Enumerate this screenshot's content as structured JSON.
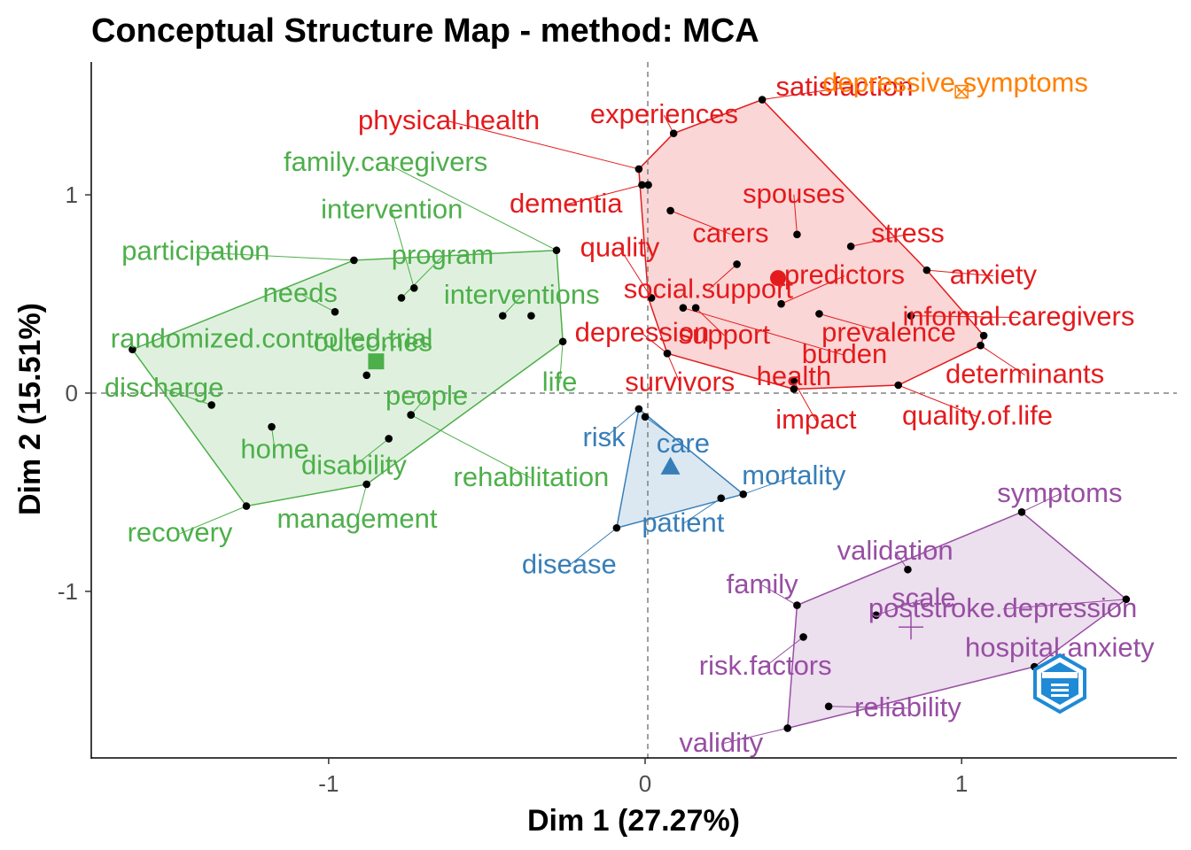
{
  "chart_data": {
    "type": "scatter",
    "title": "Conceptual Structure Map - method: MCA",
    "xlabel": "Dim 1 (27.27%)",
    "ylabel": "Dim 2 (15.51%)",
    "xlim": [
      -1.75,
      1.68
    ],
    "ylim": [
      -1.84,
      1.67
    ],
    "x_ticks": [
      -1,
      0,
      1
    ],
    "x_tick_labels": [
      "-1",
      "0",
      "1"
    ],
    "y_ticks": [
      -1,
      0,
      1
    ],
    "y_tick_labels": [
      "-1",
      "0",
      "1"
    ],
    "reference_lines": {
      "x": 0,
      "y": 0,
      "style": "dashed"
    },
    "grid": false,
    "clusters": [
      {
        "color": "#4daf4a",
        "centroid": {
          "x": -0.85,
          "y": 0.16,
          "marker": "square"
        },
        "hull": [
          [
            -1.62,
            0.22
          ],
          [
            -0.92,
            0.67
          ],
          [
            -0.28,
            0.72
          ],
          [
            -0.26,
            0.26
          ],
          [
            -0.88,
            -0.46
          ],
          [
            -1.26,
            -0.57
          ]
        ],
        "points": [
          {
            "label": "family.caregivers",
            "x": -0.28,
            "y": 0.72,
            "lx": -0.82,
            "ly": 1.17,
            "connector": true
          },
          {
            "label": "intervention",
            "x": -0.73,
            "y": 0.53,
            "lx": -0.8,
            "ly": 0.93,
            "connector": true
          },
          {
            "label": "participation",
            "x": -0.92,
            "y": 0.67,
            "lx": -1.42,
            "ly": 0.72,
            "connector": true
          },
          {
            "label": "program",
            "x": -0.77,
            "y": 0.48,
            "lx": -0.64,
            "ly": 0.7,
            "connector": true
          },
          {
            "label": "needs",
            "x": -0.98,
            "y": 0.41,
            "lx": -1.09,
            "ly": 0.51,
            "connector": true
          },
          {
            "label": "interventions",
            "x": -0.45,
            "y": 0.39,
            "lx": -0.39,
            "ly": 0.5,
            "connector": true
          },
          {
            "label": "randomized.controlled.trial",
            "x": -0.36,
            "y": 0.39,
            "lx": -1.18,
            "ly": 0.28,
            "connector": false
          },
          {
            "label": "outcomes",
            "x": -0.88,
            "y": 0.09,
            "lx": -0.86,
            "ly": 0.26,
            "connector": false
          },
          {
            "label": "discharge",
            "x": -1.37,
            "y": -0.06,
            "lx": -1.52,
            "ly": 0.03,
            "connector": true
          },
          {
            "label": "life",
            "x": -0.26,
            "y": 0.26,
            "lx": -0.27,
            "ly": 0.06,
            "connector": true
          },
          {
            "label": "people",
            "x": -0.74,
            "y": -0.11,
            "lx": -0.69,
            "ly": -0.01,
            "connector": true
          },
          {
            "label": "home",
            "x": -1.18,
            "y": -0.17,
            "lx": -1.17,
            "ly": -0.28,
            "connector": true
          },
          {
            "label": "disability",
            "x": -0.81,
            "y": -0.23,
            "lx": -0.92,
            "ly": -0.36,
            "connector": true
          },
          {
            "label": "rehabilitation",
            "x": -0.74,
            "y": -0.11,
            "lx": -0.36,
            "ly": -0.42,
            "connector": true
          },
          {
            "label": "management",
            "x": -0.88,
            "y": -0.46,
            "lx": -0.91,
            "ly": -0.63,
            "connector": true
          },
          {
            "label": "recovery",
            "x": -1.26,
            "y": -0.57,
            "lx": -1.47,
            "ly": -0.7,
            "connector": true
          },
          {
            "label": "",
            "x": -1.62,
            "y": 0.22
          }
        ]
      },
      {
        "color": "#e41a1c",
        "centroid": {
          "x": 0.42,
          "y": 0.58,
          "marker": "circle"
        },
        "hull": [
          [
            -0.02,
            1.13
          ],
          [
            0.09,
            1.31
          ],
          [
            0.37,
            1.48
          ],
          [
            0.89,
            0.62
          ],
          [
            1.07,
            0.29
          ],
          [
            1.06,
            0.24
          ],
          [
            0.8,
            0.04
          ],
          [
            0.47,
            0.02
          ],
          [
            0.07,
            0.2
          ],
          [
            0.01,
            0.48
          ]
        ],
        "points": [
          {
            "label": "satisfaction",
            "x": 0.37,
            "y": 1.48,
            "lx": 0.63,
            "ly": 1.55,
            "connector": true
          },
          {
            "label": "experiences",
            "x": 0.09,
            "y": 1.31,
            "lx": 0.06,
            "ly": 1.41,
            "connector": true
          },
          {
            "label": "physical.health",
            "x": -0.02,
            "y": 1.13,
            "lx": -0.62,
            "ly": 1.38,
            "connector": true
          },
          {
            "label": "dementia",
            "x": -0.01,
            "y": 1.05,
            "lx": -0.25,
            "ly": 0.96,
            "connector": true
          },
          {
            "label": "spouses",
            "x": 0.48,
            "y": 0.8,
            "lx": 0.47,
            "ly": 1.01,
            "connector": true
          },
          {
            "label": "carers",
            "x": 0.08,
            "y": 0.92,
            "lx": 0.27,
            "ly": 0.81,
            "connector": true
          },
          {
            "label": "stress",
            "x": 0.65,
            "y": 0.74,
            "lx": 0.83,
            "ly": 0.81,
            "connector": true
          },
          {
            "label": "quality",
            "x": 0.02,
            "y": 0.48,
            "lx": -0.08,
            "ly": 0.74,
            "connector": true
          },
          {
            "label": "predictors",
            "x": 0.43,
            "y": 0.45,
            "lx": 0.63,
            "ly": 0.6,
            "connector": true
          },
          {
            "label": "anxiety",
            "x": 0.89,
            "y": 0.62,
            "lx": 1.1,
            "ly": 0.6,
            "connector": true
          },
          {
            "label": "social.support",
            "x": 0.29,
            "y": 0.65,
            "lx": 0.2,
            "ly": 0.53,
            "connector": true
          },
          {
            "label": "informal.caregivers",
            "x": 0.84,
            "y": 0.39,
            "lx": 1.18,
            "ly": 0.39,
            "connector": true
          },
          {
            "label": "depression",
            "x": 0.07,
            "y": 0.2,
            "lx": -0.01,
            "ly": 0.31,
            "connector": true
          },
          {
            "label": "support",
            "x": 0.16,
            "y": 0.43,
            "lx": 0.25,
            "ly": 0.3,
            "connector": true
          },
          {
            "label": "prevalence",
            "x": 0.55,
            "y": 0.4,
            "lx": 0.77,
            "ly": 0.31,
            "connector": true
          },
          {
            "label": "burden",
            "x": 0.12,
            "y": 0.43,
            "lx": 0.63,
            "ly": 0.2,
            "connector": true
          },
          {
            "label": "survivors",
            "x": 0.07,
            "y": 0.2,
            "lx": 0.11,
            "ly": 0.06,
            "connector": true
          },
          {
            "label": "health",
            "x": 0.47,
            "y": 0.02,
            "lx": 0.47,
            "ly": 0.09,
            "connector": true
          },
          {
            "label": "determinants",
            "x": 1.06,
            "y": 0.24,
            "lx": 1.2,
            "ly": 0.1,
            "connector": true
          },
          {
            "label": "impact",
            "x": 0.47,
            "y": 0.06,
            "lx": 0.54,
            "ly": -0.13,
            "connector": true
          },
          {
            "label": "quality.of.life",
            "x": 0.8,
            "y": 0.04,
            "lx": 1.05,
            "ly": -0.11,
            "connector": true
          },
          {
            "label": "",
            "x": 0.01,
            "y": 1.05
          },
          {
            "label": "",
            "x": 1.07,
            "y": 0.29
          }
        ]
      },
      {
        "color": "#ff7f00",
        "centroid": {
          "x": 1.0,
          "y": 1.52,
          "marker": "boxed-x"
        },
        "hull": [],
        "points": [
          {
            "label": "depressive.symptoms",
            "x": 1.0,
            "y": 1.52,
            "lx": 0.98,
            "ly": 1.57,
            "connector": false
          }
        ]
      },
      {
        "color": "#377eb8",
        "centroid": {
          "x": 0.08,
          "y": -0.37,
          "marker": "triangle"
        },
        "hull": [
          [
            -0.02,
            -0.08
          ],
          [
            0.31,
            -0.51
          ],
          [
            -0.09,
            -0.68
          ]
        ],
        "points": [
          {
            "label": "risk",
            "x": -0.02,
            "y": -0.08,
            "lx": -0.13,
            "ly": -0.22,
            "connector": true
          },
          {
            "label": "care",
            "x": 0.0,
            "y": -0.12,
            "lx": 0.12,
            "ly": -0.25,
            "connector": true
          },
          {
            "label": "mortality",
            "x": 0.31,
            "y": -0.51,
            "lx": 0.47,
            "ly": -0.41,
            "connector": true
          },
          {
            "label": "patient",
            "x": 0.24,
            "y": -0.53,
            "lx": 0.12,
            "ly": -0.65,
            "connector": true
          },
          {
            "label": "disease",
            "x": -0.09,
            "y": -0.68,
            "lx": -0.24,
            "ly": -0.86,
            "connector": true
          }
        ]
      },
      {
        "color": "#984ea3",
        "centroid": {
          "x": 0.84,
          "y": -1.18,
          "marker": "plus"
        },
        "hull": [
          [
            1.19,
            -0.6
          ],
          [
            1.52,
            -1.04
          ],
          [
            1.23,
            -1.38
          ],
          [
            0.45,
            -1.69
          ],
          [
            0.48,
            -1.07
          ]
        ],
        "points": [
          {
            "label": "symptoms",
            "x": 1.19,
            "y": -0.6,
            "lx": 1.31,
            "ly": -0.5,
            "connector": true
          },
          {
            "label": "validation",
            "x": 0.83,
            "y": -0.89,
            "lx": 0.79,
            "ly": -0.79,
            "connector": true
          },
          {
            "label": "family",
            "x": 0.48,
            "y": -1.07,
            "lx": 0.37,
            "ly": -0.96,
            "connector": true
          },
          {
            "label": "scale",
            "x": 0.73,
            "y": -1.12,
            "lx": 0.88,
            "ly": -1.03,
            "connector": true
          },
          {
            "label": "poststroke.depression",
            "x": 1.52,
            "y": -1.04,
            "lx": 1.13,
            "ly": -1.08,
            "connector": true
          },
          {
            "label": "hospital.anxiety",
            "x": 1.23,
            "y": -1.38,
            "lx": 1.31,
            "ly": -1.28,
            "connector": true
          },
          {
            "label": "risk.factors",
            "x": 0.5,
            "y": -1.23,
            "lx": 0.38,
            "ly": -1.37,
            "connector": true
          },
          {
            "label": "reliability",
            "x": 0.58,
            "y": -1.58,
            "lx": 0.83,
            "ly": -1.58,
            "connector": true
          },
          {
            "label": "validity",
            "x": 0.45,
            "y": -1.69,
            "lx": 0.24,
            "ly": -1.76,
            "connector": true
          }
        ]
      }
    ]
  }
}
